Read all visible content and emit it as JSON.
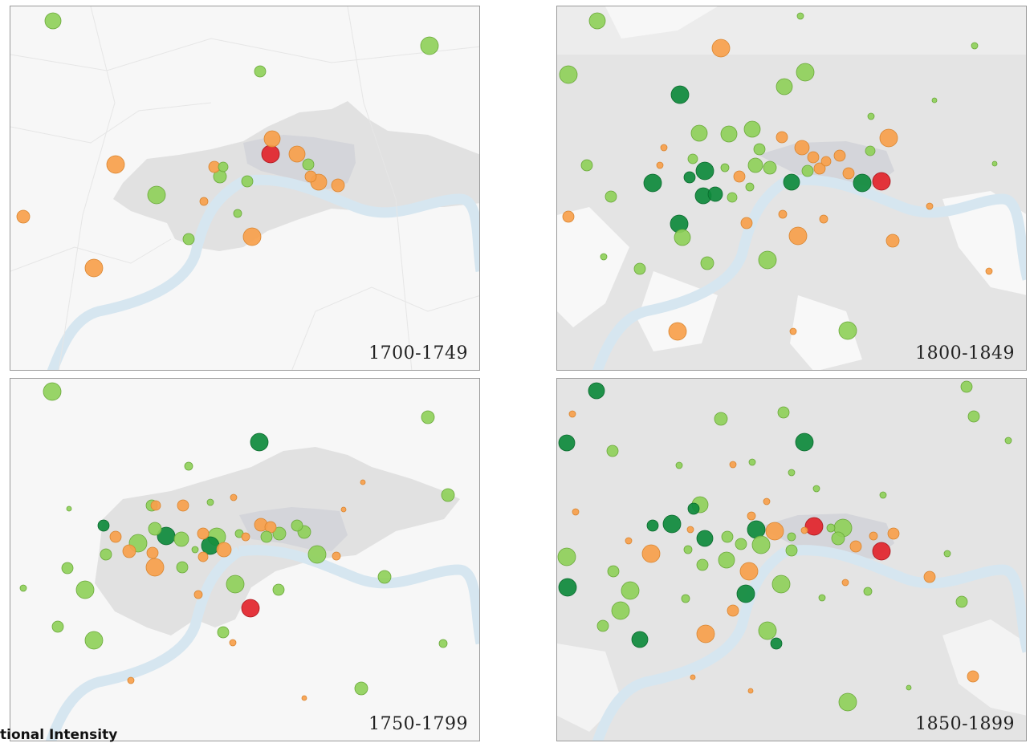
{
  "colors": {
    "light_green": "#8fd05a",
    "dark_green": "#0e8a3c",
    "orange": "#f7a04b",
    "red": "#e2242b",
    "river": "#dbe8f1",
    "urban": "#e3e3e3",
    "urban_core": "#d6d6da"
  },
  "legend": {
    "title": "tional Intensity"
  },
  "panels": [
    {
      "period": "1700-1749",
      "markers": [
        [
          65,
          25,
          10,
          "lg"
        ],
        [
          534,
          56,
          11,
          "lg"
        ],
        [
          323,
          88,
          7,
          "lg"
        ],
        [
          338,
          172,
          10,
          "or"
        ],
        [
          336,
          191,
          11,
          "rd"
        ],
        [
          369,
          191,
          10,
          "or"
        ],
        [
          143,
          204,
          11,
          "or"
        ],
        [
          266,
          207,
          7,
          "or"
        ],
        [
          277,
          207,
          6,
          "lg"
        ],
        [
          273,
          219,
          8,
          "lg"
        ],
        [
          307,
          225,
          7,
          "lg"
        ],
        [
          383,
          204,
          7,
          "lg"
        ],
        [
          386,
          219,
          7,
          "or"
        ],
        [
          396,
          226,
          10,
          "or"
        ],
        [
          420,
          230,
          8,
          "or"
        ],
        [
          194,
          242,
          11,
          "lg"
        ],
        [
          253,
          250,
          5,
          "or"
        ],
        [
          28,
          269,
          8,
          "or"
        ],
        [
          295,
          265,
          5,
          "lg"
        ],
        [
          234,
          297,
          7,
          "lg"
        ],
        [
          313,
          294,
          11,
          "or"
        ],
        [
          116,
          333,
          11,
          "or"
        ]
      ]
    },
    {
      "period": "1800-1849",
      "markers": [
        [
          743,
          25,
          10,
          "lg"
        ],
        [
          996,
          19,
          4,
          "lg"
        ],
        [
          897,
          59,
          11,
          "or"
        ],
        [
          1002,
          89,
          11,
          "lg"
        ],
        [
          707,
          92,
          11,
          "lg"
        ],
        [
          976,
          107,
          10,
          "lg"
        ],
        [
          1213,
          56,
          4,
          "lg"
        ],
        [
          846,
          117,
          11,
          "dg"
        ],
        [
          1084,
          144,
          4,
          "lg"
        ],
        [
          1163,
          124,
          3,
          "lg"
        ],
        [
          870,
          165,
          10,
          "lg"
        ],
        [
          907,
          166,
          10,
          "lg"
        ],
        [
          936,
          160,
          10,
          "lg"
        ],
        [
          1106,
          171,
          11,
          "or"
        ],
        [
          730,
          205,
          7,
          "lg"
        ],
        [
          826,
          183,
          4,
          "or"
        ],
        [
          945,
          185,
          7,
          "lg"
        ],
        [
          973,
          170,
          7,
          "or"
        ],
        [
          998,
          183,
          9,
          "or"
        ],
        [
          1012,
          195,
          7,
          "or"
        ],
        [
          1028,
          200,
          6,
          "or"
        ],
        [
          1045,
          193,
          7,
          "or"
        ],
        [
          1083,
          187,
          6,
          "lg"
        ],
        [
          862,
          197,
          6,
          "lg"
        ],
        [
          877,
          212,
          11,
          "dg"
        ],
        [
          858,
          220,
          7,
          "dg"
        ],
        [
          821,
          205,
          4,
          "or"
        ],
        [
          902,
          208,
          5,
          "lg"
        ],
        [
          920,
          219,
          7,
          "or"
        ],
        [
          940,
          205,
          9,
          "lg"
        ],
        [
          958,
          208,
          8,
          "lg"
        ],
        [
          985,
          226,
          10,
          "dg"
        ],
        [
          1005,
          212,
          7,
          "lg"
        ],
        [
          1020,
          209,
          7,
          "or"
        ],
        [
          1056,
          215,
          7,
          "or"
        ],
        [
          1073,
          227,
          11,
          "dg"
        ],
        [
          1097,
          225,
          11,
          "rd"
        ],
        [
          812,
          227,
          11,
          "dg"
        ],
        [
          875,
          243,
          10,
          "dg"
        ],
        [
          890,
          241,
          9,
          "dg"
        ],
        [
          911,
          245,
          6,
          "lg"
        ],
        [
          933,
          232,
          5,
          "lg"
        ],
        [
          760,
          244,
          7,
          "lg"
        ],
        [
          707,
          269,
          7,
          "or"
        ],
        [
          929,
          277,
          7,
          "or"
        ],
        [
          974,
          266,
          5,
          "or"
        ],
        [
          1025,
          272,
          5,
          "or"
        ],
        [
          845,
          278,
          11,
          "dg"
        ],
        [
          849,
          295,
          10,
          "lg"
        ],
        [
          993,
          293,
          11,
          "or"
        ],
        [
          1111,
          299,
          8,
          "or"
        ],
        [
          1157,
          256,
          4,
          "or"
        ],
        [
          751,
          319,
          4,
          "lg"
        ],
        [
          955,
          323,
          11,
          "lg"
        ],
        [
          880,
          327,
          8,
          "lg"
        ],
        [
          796,
          334,
          7,
          "lg"
        ],
        [
          1231,
          337,
          4,
          "or"
        ],
        [
          843,
          412,
          11,
          "or"
        ],
        [
          1055,
          411,
          11,
          "lg"
        ],
        [
          987,
          412,
          4,
          "or"
        ],
        [
          1238,
          203,
          3,
          "lg"
        ]
      ]
    },
    {
      "period": "1750-1799",
      "markers": [
        [
          64,
          487,
          11,
          "lg"
        ],
        [
          532,
          519,
          8,
          "lg"
        ],
        [
          322,
          550,
          11,
          "dg"
        ],
        [
          234,
          580,
          5,
          "lg"
        ],
        [
          193,
          629,
          6,
          "or"
        ],
        [
          188,
          629,
          7,
          "lg"
        ],
        [
          227,
          629,
          7,
          "or"
        ],
        [
          261,
          625,
          4,
          "lg"
        ],
        [
          290,
          619,
          4,
          "or"
        ],
        [
          128,
          654,
          7,
          "dg"
        ],
        [
          143,
          668,
          7,
          "or"
        ],
        [
          171,
          676,
          11,
          "lg"
        ],
        [
          192,
          658,
          8,
          "lg"
        ],
        [
          206,
          667,
          11,
          "dg"
        ],
        [
          225,
          671,
          9,
          "lg"
        ],
        [
          252,
          664,
          7,
          "or"
        ],
        [
          269,
          668,
          11,
          "lg"
        ],
        [
          261,
          679,
          11,
          "dg"
        ],
        [
          278,
          684,
          9,
          "or"
        ],
        [
          297,
          664,
          5,
          "lg"
        ],
        [
          305,
          668,
          5,
          "or"
        ],
        [
          324,
          653,
          8,
          "or"
        ],
        [
          336,
          656,
          7,
          "or"
        ],
        [
          347,
          664,
          8,
          "lg"
        ],
        [
          331,
          668,
          7,
          "lg"
        ],
        [
          369,
          654,
          7,
          "lg"
        ],
        [
          378,
          662,
          8,
          "lg"
        ],
        [
          394,
          690,
          11,
          "lg"
        ],
        [
          131,
          690,
          7,
          "lg"
        ],
        [
          160,
          686,
          8,
          "or"
        ],
        [
          189,
          688,
          7,
          "or"
        ],
        [
          192,
          706,
          11,
          "or"
        ],
        [
          226,
          706,
          7,
          "lg"
        ],
        [
          252,
          693,
          6,
          "or"
        ],
        [
          242,
          684,
          4,
          "lg"
        ],
        [
          418,
          692,
          5,
          "or"
        ],
        [
          83,
          707,
          7,
          "lg"
        ],
        [
          105,
          734,
          11,
          "lg"
        ],
        [
          28,
          732,
          4,
          "lg"
        ],
        [
          292,
          727,
          11,
          "lg"
        ],
        [
          346,
          734,
          7,
          "lg"
        ],
        [
          311,
          757,
          11,
          "rd"
        ],
        [
          246,
          740,
          5,
          "or"
        ],
        [
          478,
          718,
          8,
          "lg"
        ],
        [
          71,
          780,
          7,
          "lg"
        ],
        [
          277,
          787,
          7,
          "lg"
        ],
        [
          116,
          797,
          11,
          "lg"
        ],
        [
          289,
          800,
          4,
          "or"
        ],
        [
          551,
          801,
          5,
          "lg"
        ],
        [
          162,
          847,
          4,
          "or"
        ],
        [
          449,
          857,
          8,
          "lg"
        ],
        [
          557,
          616,
          8,
          "lg"
        ],
        [
          427,
          634,
          3,
          "or"
        ],
        [
          451,
          600,
          3,
          "or"
        ],
        [
          378,
          869,
          3,
          "or"
        ],
        [
          85,
          633,
          3,
          "lg"
        ]
      ]
    },
    {
      "period": "1850-1899",
      "markers": [
        [
          742,
          486,
          10,
          "dg"
        ],
        [
          1203,
          481,
          7,
          "lg"
        ],
        [
          975,
          513,
          7,
          "lg"
        ],
        [
          897,
          521,
          8,
          "lg"
        ],
        [
          1212,
          518,
          7,
          "lg"
        ],
        [
          712,
          515,
          4,
          "or"
        ],
        [
          705,
          551,
          10,
          "dg"
        ],
        [
          762,
          561,
          7,
          "lg"
        ],
        [
          1001,
          550,
          11,
          "dg"
        ],
        [
          1255,
          548,
          4,
          "lg"
        ],
        [
          845,
          579,
          4,
          "lg"
        ],
        [
          912,
          578,
          4,
          "or"
        ],
        [
          936,
          575,
          4,
          "lg"
        ],
        [
          985,
          588,
          4,
          "lg"
        ],
        [
          716,
          637,
          4,
          "or"
        ],
        [
          1016,
          608,
          4,
          "lg"
        ],
        [
          1099,
          616,
          4,
          "lg"
        ],
        [
          863,
          633,
          7,
          "dg"
        ],
        [
          871,
          628,
          10,
          "lg"
        ],
        [
          836,
          652,
          11,
          "dg"
        ],
        [
          812,
          654,
          7,
          "dg"
        ],
        [
          859,
          659,
          4,
          "or"
        ],
        [
          877,
          670,
          10,
          "dg"
        ],
        [
          905,
          668,
          7,
          "lg"
        ],
        [
          922,
          677,
          7,
          "lg"
        ],
        [
          941,
          659,
          11,
          "dg"
        ],
        [
          935,
          642,
          5,
          "or"
        ],
        [
          947,
          678,
          11,
          "lg"
        ],
        [
          964,
          661,
          11,
          "or"
        ],
        [
          954,
          624,
          4,
          "or"
        ],
        [
          985,
          668,
          5,
          "lg"
        ],
        [
          1001,
          660,
          4,
          "or"
        ],
        [
          1013,
          655,
          11,
          "rd"
        ],
        [
          1034,
          657,
          5,
          "lg"
        ],
        [
          1049,
          657,
          11,
          "lg"
        ],
        [
          1043,
          670,
          8,
          "lg"
        ],
        [
          1065,
          680,
          7,
          "or"
        ],
        [
          1087,
          667,
          5,
          "or"
        ],
        [
          1112,
          664,
          7,
          "or"
        ],
        [
          1097,
          686,
          11,
          "rd"
        ],
        [
          705,
          693,
          11,
          "lg"
        ],
        [
          782,
          673,
          4,
          "or"
        ],
        [
          810,
          689,
          11,
          "or"
        ],
        [
          856,
          684,
          5,
          "lg"
        ],
        [
          874,
          703,
          7,
          "lg"
        ],
        [
          904,
          697,
          10,
          "lg"
        ],
        [
          932,
          711,
          11,
          "or"
        ],
        [
          985,
          685,
          7,
          "lg"
        ],
        [
          1179,
          689,
          4,
          "lg"
        ],
        [
          706,
          731,
          11,
          "dg"
        ],
        [
          763,
          711,
          7,
          "lg"
        ],
        [
          784,
          735,
          11,
          "lg"
        ],
        [
          972,
          727,
          11,
          "lg"
        ],
        [
          928,
          739,
          11,
          "dg"
        ],
        [
          853,
          745,
          5,
          "lg"
        ],
        [
          1023,
          744,
          4,
          "lg"
        ],
        [
          1052,
          725,
          4,
          "or"
        ],
        [
          1080,
          736,
          5,
          "lg"
        ],
        [
          1157,
          718,
          7,
          "or"
        ],
        [
          1197,
          749,
          7,
          "lg"
        ],
        [
          772,
          760,
          11,
          "lg"
        ],
        [
          912,
          760,
          7,
          "or"
        ],
        [
          750,
          779,
          7,
          "lg"
        ],
        [
          955,
          785,
          11,
          "lg"
        ],
        [
          966,
          801,
          7,
          "dg"
        ],
        [
          878,
          789,
          11,
          "or"
        ],
        [
          796,
          796,
          10,
          "dg"
        ],
        [
          1211,
          842,
          7,
          "or"
        ],
        [
          1055,
          874,
          11,
          "lg"
        ],
        [
          862,
          843,
          3,
          "or"
        ],
        [
          934,
          860,
          3,
          "or"
        ],
        [
          1131,
          856,
          3,
          "lg"
        ]
      ]
    }
  ]
}
